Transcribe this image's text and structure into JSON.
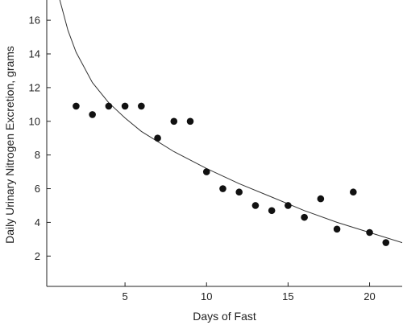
{
  "chart_data": {
    "type": "scatter",
    "title": "",
    "xlabel": "Days of Fast",
    "ylabel": "Daily Urinary Nitrogen Excretion, grams",
    "xlim": [
      0.2,
      22
    ],
    "ylim": [
      0.2,
      17.2
    ],
    "xticks": [
      5,
      10,
      15,
      20
    ],
    "yticks": [
      2,
      4,
      6,
      8,
      10,
      12,
      14,
      16
    ],
    "grid": false,
    "legend": "none",
    "series": [
      {
        "x": [
          2,
          3,
          4,
          5,
          6,
          7,
          8,
          9,
          10,
          11,
          12,
          13,
          14,
          15,
          16,
          17,
          18,
          19,
          20,
          21
        ],
        "y": [
          10.9,
          10.4,
          10.9,
          10.9,
          10.9,
          9.0,
          10.0,
          10.0,
          7.0,
          6.0,
          5.8,
          5.0,
          4.7,
          5.0,
          4.3,
          5.4,
          3.6,
          5.8,
          3.4,
          2.8
        ]
      }
    ],
    "trend_curve": {
      "x": [
        1.0,
        1.5,
        2.0,
        3.0,
        4.0,
        5.0,
        6.0,
        7.0,
        8.0,
        9.0,
        10.0,
        12.0,
        14.0,
        16.0,
        18.0,
        20.0,
        22.0
      ],
      "y": [
        17.2,
        15.4,
        14.1,
        12.3,
        11.1,
        10.2,
        9.4,
        8.8,
        8.2,
        7.7,
        7.2,
        6.3,
        5.5,
        4.7,
        4.0,
        3.4,
        2.8
      ]
    },
    "colors": {
      "marks": "#111111",
      "axis": "#222222"
    }
  }
}
